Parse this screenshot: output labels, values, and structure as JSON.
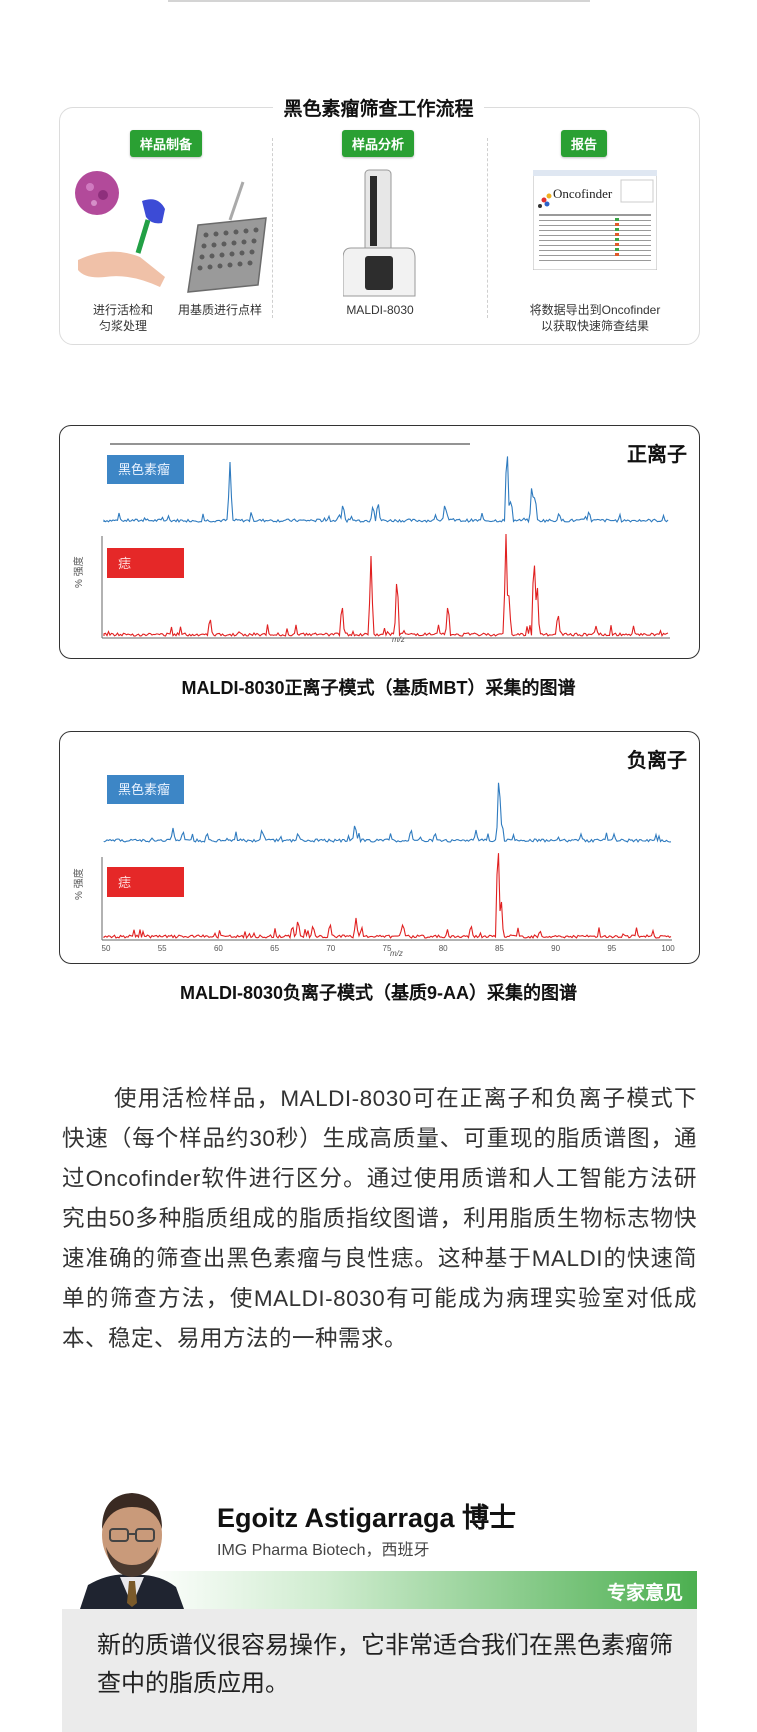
{
  "workflow": {
    "title": "黑色素瘤筛查工作流程",
    "steps": [
      {
        "badge": "样品制备"
      },
      {
        "badge": "样品分析"
      },
      {
        "badge": "报告"
      }
    ],
    "captions": {
      "biopsy": "进行活检和\n匀浆处理",
      "spotting": "用基质进行点样",
      "instrument": "MALDI-8030",
      "report": "将数据导出到Oncofinder\n以获取快速筛查结果"
    },
    "report_logo": "Oncofinder"
  },
  "positive": {
    "label": "正离子",
    "series": [
      "黑色素瘤",
      "痣"
    ],
    "caption": "MALDI-8030正离子模式（基质MBT）采集的图谱",
    "axis_unit": "m/z",
    "y_axis": "% 强度",
    "colors": {
      "top": "#2f7bbf",
      "bottom": "#e02020"
    }
  },
  "negative": {
    "label": "负离子",
    "series": [
      "黑色素瘤",
      "痣"
    ],
    "caption": "MALDI-8030负离子模式（基质9-AA）采集的图谱",
    "axis_unit": "m/z",
    "y_axis": "% 强度",
    "ticks": [
      "50",
      "55",
      "60",
      "65",
      "70",
      "75",
      "80",
      "85",
      "90",
      "95",
      "100"
    ],
    "colors": {
      "top": "#2f7bbf",
      "bottom": "#e02020"
    }
  },
  "paragraph": "使用活检样品，MALDI-8030可在正离子和负离子模式下快速（每个样品约30秒）生成高质量、可重现的脂质谱图，通过Oncofinder软件进行区分。通过使用质谱和人工智能方法研究由50多种脂质组成的脂质指纹图谱，利用脂质生物标志物快速准确的筛查出黑色素瘤与良性痣。这种基于MALDI的快速简单的筛查方法，使MALDI-8030有可能成为病理实验室对低成本、稳定、易用方法的一种需求。",
  "expert": {
    "name": "Egoitz Astigarraga 博士",
    "affiliation": "IMG Pharma Biotech，西班牙",
    "tag": "专家意见",
    "quote": "新的质谱仪很容易操作，它非常适合我们在黑色素瘤筛查中的脂质应用。"
  }
}
